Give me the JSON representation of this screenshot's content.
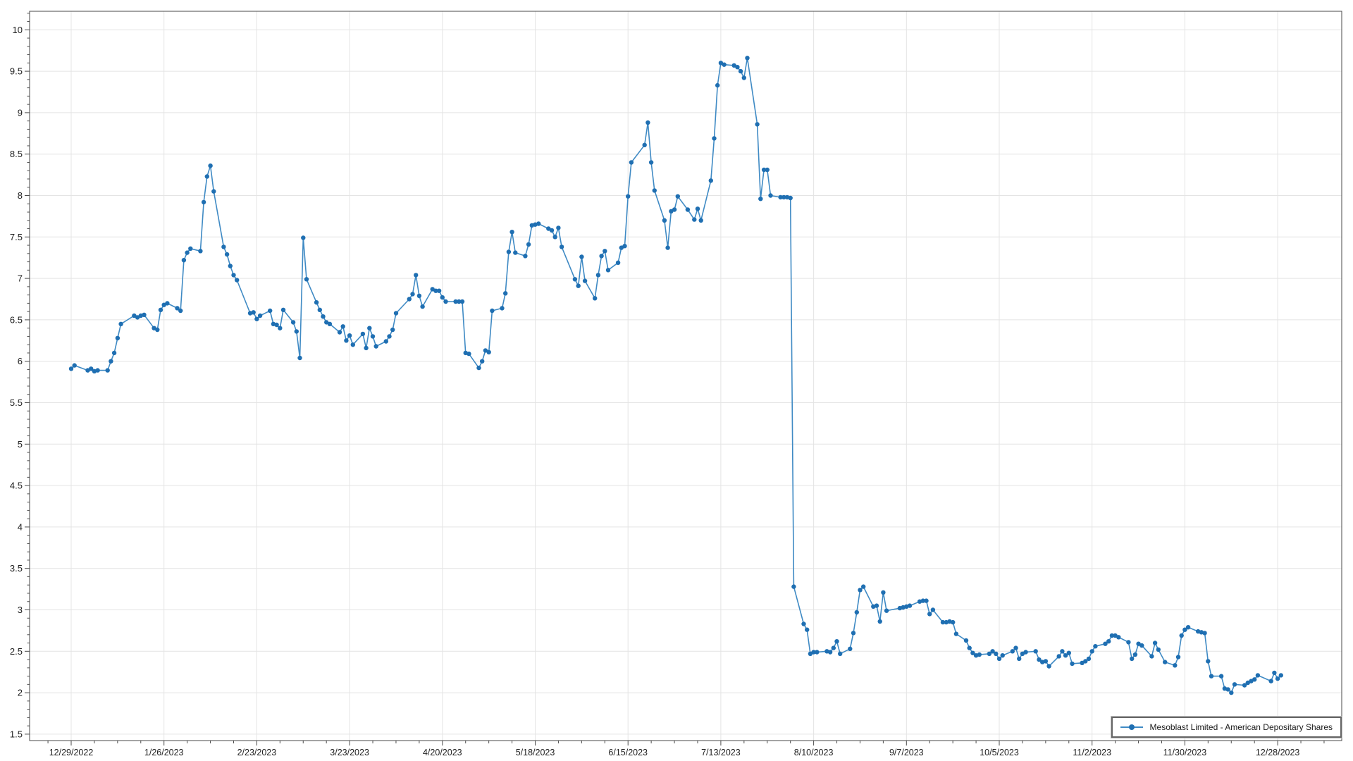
{
  "chart_data": {
    "type": "line",
    "title": "",
    "legend": {
      "position": "bottom-right",
      "label": "Mesoblast Limited - American Depositary Shares"
    },
    "grid": true,
    "colors": {
      "line": "#3f8ac4",
      "marker": "#1f6fb2",
      "gridline": "#e4e4e4",
      "axis": "#4a4a4a",
      "tick_label": "#202020"
    },
    "x_axis": {
      "tick_labels": [
        "12/29/2022",
        "1/26/2023",
        "2/23/2023",
        "3/23/2023",
        "4/20/2023",
        "5/18/2023",
        "6/15/2023",
        "7/13/2023",
        "8/10/2023",
        "9/7/2023",
        "10/5/2023",
        "11/2/2023",
        "11/30/2023",
        "12/28/2023"
      ],
      "tick_interval_days": 28,
      "minor_tick_days": 7,
      "start_date": "2022-12-29",
      "end_date": "2023-12-29",
      "closed_dates": [
        "2023-01-02",
        "2023-01-16",
        "2023-02-20",
        "2023-04-07",
        "2023-05-29",
        "2023-06-19",
        "2023-07-04",
        "2023-09-04",
        "2023-11-23",
        "2023-12-25"
      ]
    },
    "y_axis": {
      "min": 1.5,
      "max": 10,
      "tick_step": 0.5,
      "minor_step": 0.1,
      "ticks": [
        1.5,
        2,
        2.5,
        3,
        3.5,
        4,
        4.5,
        5,
        5.5,
        6,
        6.5,
        7,
        7.5,
        8,
        8.5,
        9,
        9.5,
        10
      ]
    },
    "series": [
      {
        "name": "Mesoblast Limited - American Depositary Shares",
        "frequency": "daily (trading days)",
        "values": [
          5.91,
          5.95,
          5.89,
          5.91,
          5.88,
          5.89,
          5.89,
          6.0,
          6.1,
          6.28,
          6.45,
          6.55,
          6.53,
          6.55,
          6.56,
          6.4,
          6.38,
          6.62,
          6.68,
          6.7,
          6.64,
          6.61,
          7.22,
          7.31,
          7.36,
          7.33,
          7.92,
          8.23,
          8.36,
          8.05,
          7.38,
          7.29,
          7.15,
          7.04,
          6.98,
          6.58,
          6.59,
          6.51,
          6.55,
          6.61,
          6.45,
          6.44,
          6.4,
          6.62,
          6.47,
          6.36,
          6.04,
          7.49,
          6.99,
          6.71,
          6.62,
          6.54,
          6.47,
          6.45,
          6.35,
          6.42,
          6.25,
          6.31,
          6.2,
          6.33,
          6.16,
          6.4,
          6.3,
          6.18,
          6.24,
          6.3,
          6.38,
          6.58,
          6.75,
          6.81,
          7.04,
          6.79,
          6.66,
          6.87,
          6.85,
          6.85,
          6.77,
          6.72,
          6.72,
          6.72,
          6.72,
          6.1,
          6.09,
          5.92,
          6.0,
          6.13,
          6.11,
          6.61,
          6.64,
          6.82,
          7.32,
          7.56,
          7.31,
          7.27,
          7.41,
          7.64,
          7.65,
          7.66,
          7.6,
          7.58,
          7.5,
          7.61,
          7.38,
          6.99,
          6.91,
          7.26,
          6.97,
          6.76,
          7.04,
          7.27,
          7.33,
          7.1,
          7.19,
          7.37,
          7.39,
          7.99,
          8.4,
          8.61,
          8.88,
          8.4,
          8.06,
          7.7,
          7.37,
          7.81,
          7.83,
          7.99,
          7.83,
          7.71,
          7.84,
          7.7,
          8.18,
          8.69,
          9.33,
          9.6,
          9.58,
          9.57,
          9.55,
          9.5,
          9.42,
          9.66,
          8.86,
          7.96,
          8.31,
          8.31,
          8.0,
          7.98,
          7.98,
          7.98,
          7.97,
          3.28,
          2.83,
          2.76,
          2.47,
          2.49,
          2.49,
          2.5,
          2.49,
          2.54,
          2.62,
          2.47,
          2.53,
          2.72,
          2.97,
          3.24,
          3.28,
          3.04,
          3.05,
          2.86,
          3.21,
          2.99,
          3.02,
          3.03,
          3.04,
          3.05,
          3.1,
          3.11,
          3.11,
          2.95,
          3.0,
          2.85,
          2.85,
          2.86,
          2.85,
          2.71,
          2.63,
          2.54,
          2.48,
          2.45,
          2.46,
          2.47,
          2.5,
          2.47,
          2.41,
          2.45,
          2.5,
          2.54,
          2.41,
          2.47,
          2.49,
          2.5,
          2.4,
          2.37,
          2.38,
          2.32,
          2.44,
          2.5,
          2.45,
          2.48,
          2.35,
          2.36,
          2.38,
          2.41,
          2.5,
          2.56,
          2.59,
          2.62,
          2.69,
          2.69,
          2.67,
          2.61,
          2.41,
          2.46,
          2.59,
          2.57,
          2.44,
          2.6,
          2.52,
          2.37,
          2.33,
          2.43,
          2.69,
          2.76,
          2.79,
          2.74,
          2.73,
          2.72,
          2.38,
          2.2,
          2.2,
          2.05,
          2.04,
          2.0,
          2.1,
          2.09,
          2.12,
          2.14,
          2.16,
          2.21,
          2.14,
          2.24,
          2.17,
          2.21
        ]
      }
    ]
  }
}
